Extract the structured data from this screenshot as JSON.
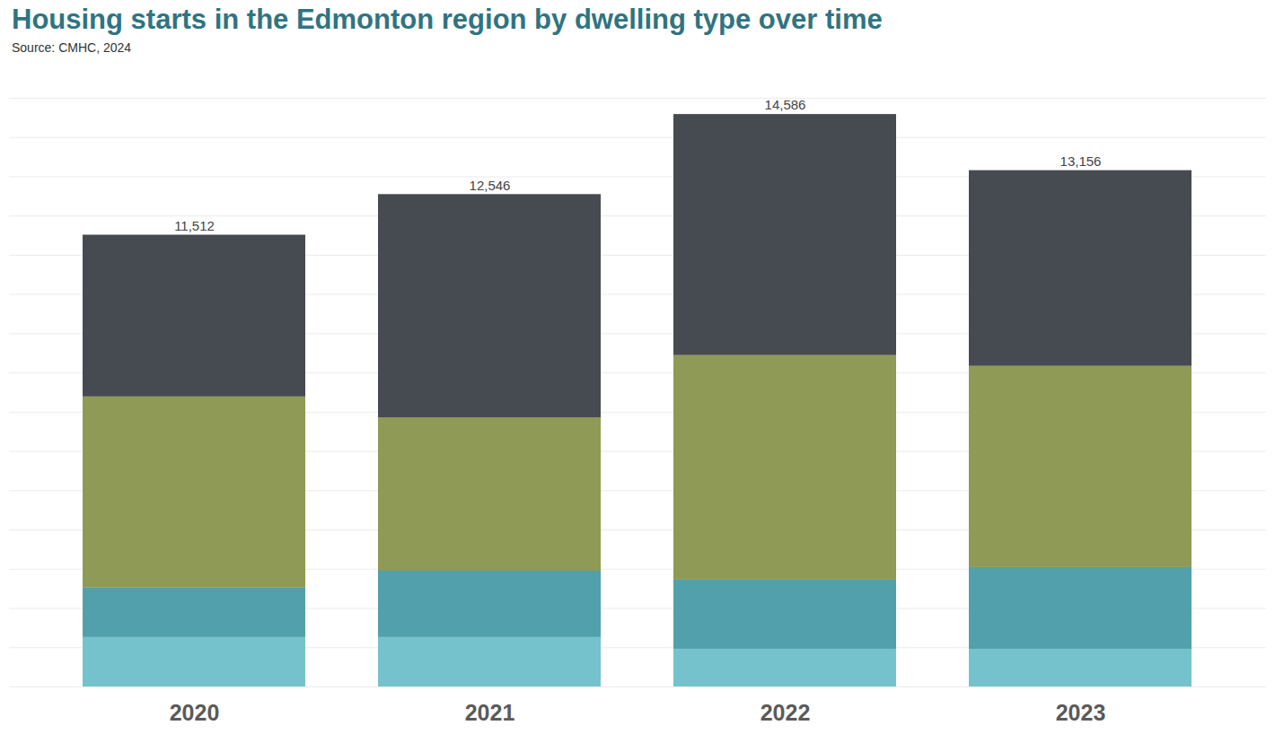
{
  "chart_data": {
    "type": "bar",
    "title": "Housing starts in the Edmonton region by dwelling type over time",
    "subtitle": "Source: CMHC, 2024",
    "stacked": true,
    "categories": [
      "2020",
      "2021",
      "2022",
      "2023"
    ],
    "series": [
      {
        "color": "#75c2cc",
        "values": [
          1260,
          1260,
          961,
          961
        ]
      },
      {
        "color": "#52a0ab",
        "values": [
          1260,
          1690,
          1762,
          2082
        ]
      },
      {
        "color": "#8e9a55",
        "values": [
          4870,
          3910,
          5721,
          5126
        ]
      },
      {
        "color": "#464a51",
        "values": [
          4122,
          5686,
          6142,
          4987
        ]
      }
    ],
    "totals": [
      11512,
      12546,
      14586,
      13156
    ],
    "total_labels": [
      "11,512",
      "12,546",
      "14,586",
      "13,156"
    ],
    "ylim": [
      0,
      15000
    ],
    "yticks": [
      0,
      1000,
      2000,
      3000,
      4000,
      5000,
      6000,
      7000,
      8000,
      9000,
      10000,
      11000,
      12000,
      13000,
      14000,
      15000
    ],
    "grid": true,
    "tick_labels": "x"
  }
}
